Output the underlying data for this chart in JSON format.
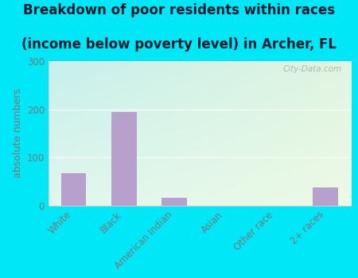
{
  "title_line1": "Breakdown of poor residents within races",
  "title_line2": "(income below poverty level) in Archer, FL",
  "categories": [
    "White",
    "Black",
    "American Indian",
    "Asian",
    "Other race",
    "2+ races"
  ],
  "values": [
    68,
    195,
    17,
    0,
    0,
    38
  ],
  "bar_color": "#b8a0cc",
  "ylabel": "absolute numbers",
  "ylim": [
    0,
    300
  ],
  "yticks": [
    0,
    100,
    200,
    300
  ],
  "bg_color_topleft": "#c8f0ee",
  "bg_color_topright": "#d8eedd",
  "bg_color_bottomleft": "#d8f0ee",
  "bg_color_bottomright": "#e8f8e0",
  "outer_background": "#00e8f8",
  "title_fontsize": 12,
  "ylabel_fontsize": 9,
  "tick_fontsize": 8.5,
  "watermark": "City-Data.com",
  "grid_color": "#cccccc",
  "tick_color": "#777777"
}
